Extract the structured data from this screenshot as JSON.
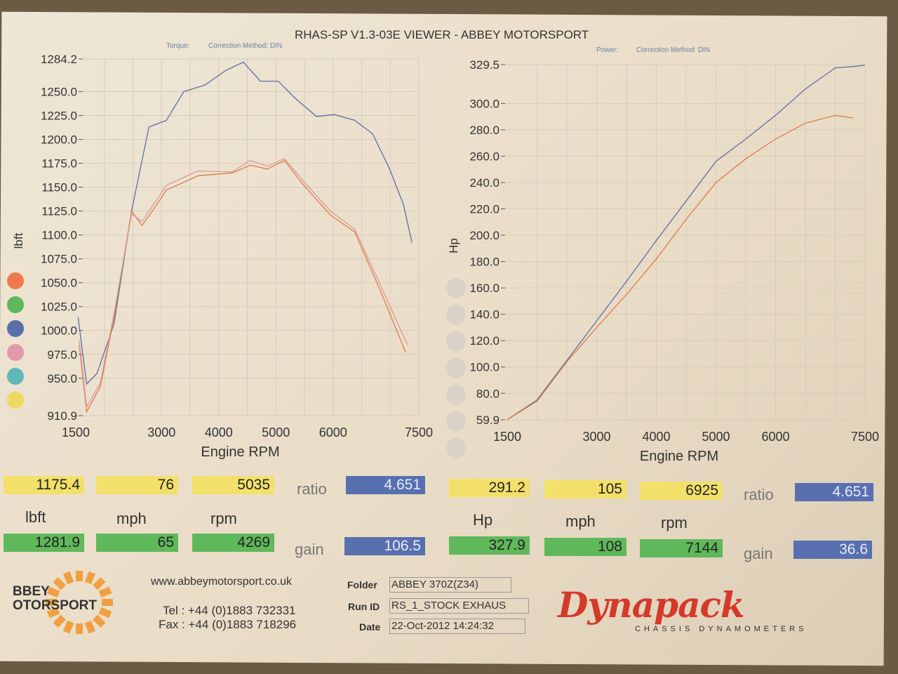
{
  "header": {
    "title": "RHAS-SP V1.3-03E VIEWER - ABBEY MOTORSPORT",
    "torque_label": "Torque:",
    "torque_method": "Correction Method: DIN",
    "power_label": "Power:",
    "power_method": "Correction Method: DIN"
  },
  "chart_data": [
    {
      "type": "line",
      "ylabel": "lbft",
      "xlabel": "Engine RPM",
      "xlim": [
        1500,
        7500
      ],
      "ylim": [
        910.9,
        1284.2
      ],
      "xticks": [
        1500,
        3000,
        4000,
        5000,
        6000,
        7500
      ],
      "yticks": [
        "1284.2",
        "1250.0",
        "1225.0",
        "1200.0",
        "1175.0",
        "1150.0",
        "1125.0",
        "1100.0",
        "1075.0",
        "1050.0",
        "1025.0",
        "1000.0",
        "975.0",
        "950.0",
        "910.9"
      ],
      "grid": true,
      "series": [
        {
          "color": "#5a6fa8",
          "x": [
            1540,
            1690,
            1870,
            2170,
            2475,
            2780,
            3085,
            3390,
            3760,
            4120,
            4430,
            4730,
            5040,
            5340,
            5710,
            6020,
            6380,
            6690,
            6990,
            7230,
            7380
          ],
          "y": [
            1014,
            944,
            955,
            1007,
            1125,
            1213,
            1220,
            1250,
            1257,
            1272,
            1281,
            1261,
            1261,
            1243,
            1224,
            1226,
            1220,
            1206,
            1169,
            1132,
            1092
          ]
        },
        {
          "color": "#e07a4a",
          "x": [
            1560,
            1690,
            1930,
            2170,
            2475,
            2660,
            2840,
            3085,
            3640,
            4240,
            4550,
            4850,
            5150,
            5460,
            5950,
            6380,
            6810,
            7270
          ],
          "y": [
            985,
            915,
            941,
            1014,
            1125,
            1110,
            1125,
            1147,
            1162,
            1165,
            1173,
            1169,
            1178,
            1154,
            1121,
            1103,
            1044,
            977
          ]
        },
        {
          "color": "#d89a9a",
          "x": [
            1560,
            1690,
            1930,
            2170,
            2475,
            2660,
            2840,
            3085,
            3640,
            4240,
            4550,
            4850,
            5150,
            5460,
            5950,
            6380,
            6810,
            7300
          ],
          "y": [
            990,
            920,
            945,
            1018,
            1122,
            1114,
            1130,
            1152,
            1167,
            1166,
            1178,
            1172,
            1180,
            1158,
            1125,
            1106,
            1050,
            985
          ]
        }
      ]
    },
    {
      "type": "line",
      "ylabel": "Hp",
      "xlabel": "Engine RPM",
      "xlim": [
        1500,
        7500
      ],
      "ylim": [
        59.9,
        329.5
      ],
      "xticks": [
        1500,
        3000,
        4000,
        5000,
        6000,
        7500
      ],
      "yticks": [
        "329.5",
        "300.0",
        "280.0",
        "260.0",
        "240.0",
        "220.0",
        "200.0",
        "180.0",
        "160.0",
        "140.0",
        "120.0",
        "100.0",
        "80.0",
        "59.9"
      ],
      "grid": true,
      "series": [
        {
          "color": "#5a6fa8",
          "x": [
            1500,
            2000,
            2500,
            3000,
            3500,
            4000,
            4500,
            5000,
            5500,
            6000,
            6500,
            7000,
            7300,
            7500
          ],
          "y": [
            60,
            75,
            105,
            135,
            165,
            196,
            226,
            256,
            273,
            291,
            311,
            327,
            328,
            329
          ]
        },
        {
          "color": "#e07a4a",
          "x": [
            1500,
            2000,
            2500,
            3000,
            3500,
            4000,
            4500,
            5000,
            5500,
            6000,
            6500,
            7000,
            7300
          ],
          "y": [
            60,
            74,
            104,
            130,
            155,
            182,
            212,
            240,
            258,
            273,
            285,
            291,
            289
          ]
        }
      ]
    }
  ],
  "readout_left": {
    "torque": "1175.4",
    "mph": "76",
    "rpm": "5035",
    "ratio_label": "ratio",
    "ratio": "4.651",
    "unit_torque": "lbft",
    "unit_mph": "mph",
    "unit_rpm": "rpm",
    "torque2": "1281.9",
    "mph2": "65",
    "rpm2": "4269",
    "gain_label": "gain",
    "gain": "106.5"
  },
  "readout_right": {
    "power": "291.2",
    "mph": "105",
    "rpm": "6925",
    "ratio_label": "ratio",
    "ratio": "4.651",
    "unit_power": "Hp",
    "unit_mph": "mph",
    "unit_rpm": "rpm",
    "power2": "327.9",
    "mph2": "108",
    "rpm2": "7144",
    "gain_label": "gain",
    "gain": "36.6"
  },
  "legend_colors": [
    "#ef7a50",
    "#5fb85a",
    "#5a6fa8",
    "#e39aa8",
    "#5fb8b8",
    "#f0d860"
  ],
  "footer": {
    "logo": "ABBEY MOTORSPORT",
    "logo_line1": "BBEY",
    "logo_line2": "OTORSPORT",
    "website": "www.abbeymotorsport.co.uk",
    "tel": "Tel : +44 (0)1883 732331",
    "fax": "Fax : +44 (0)1883 718296",
    "folder_label": "Folder",
    "folder": "ABBEY 370Z(Z34)",
    "runid_label": "Run ID",
    "runid": "RS_1_STOCK EXHAUS",
    "date_label": "Date",
    "date": "22-Oct-2012  14:24:32",
    "brand": "Dynapack",
    "brand_sub": "CHASSIS   DYNAMOMETERS"
  }
}
